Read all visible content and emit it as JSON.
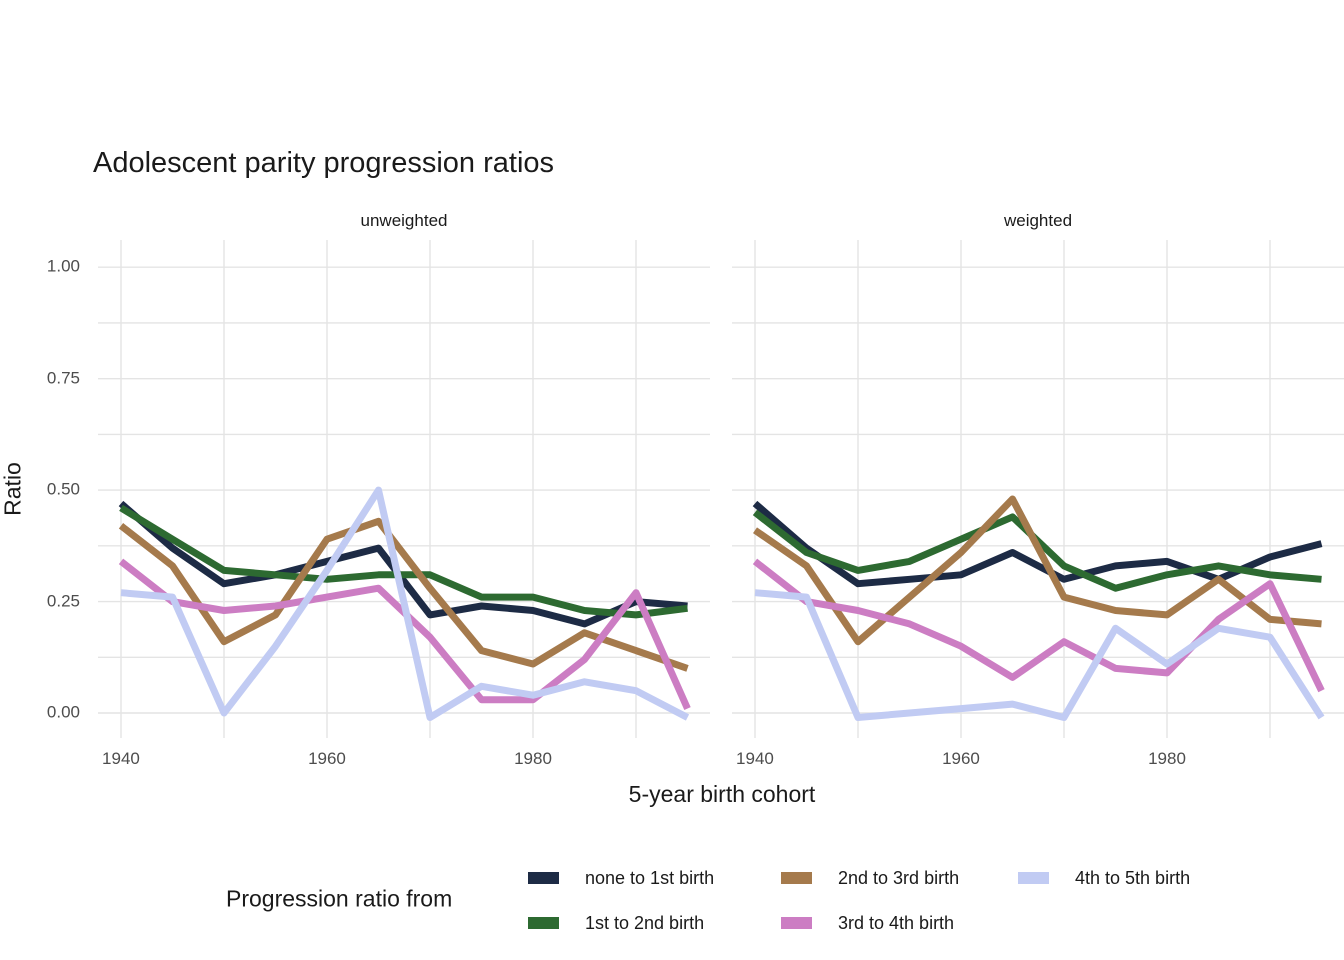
{
  "chart_data": {
    "type": "line",
    "title": "Adolescent parity progression ratios",
    "xlabel": "5-year birth cohort",
    "ylabel": "Ratio",
    "legend_title": "Progression ratio from",
    "legend_position": "bottom",
    "grid": true,
    "x": [
      1940,
      1945,
      1950,
      1955,
      1960,
      1965,
      1970,
      1975,
      1980,
      1985,
      1990,
      1995
    ],
    "x_ticks": [
      {
        "v": 1940,
        "label": "1940"
      },
      {
        "v": 1960,
        "label": "1960"
      },
      {
        "v": 1980,
        "label": "1980"
      }
    ],
    "x_gridlines": [
      1940,
      1950,
      1960,
      1970,
      1980,
      1990
    ],
    "y_ticks": [
      {
        "v": 0.0,
        "label": "0.00"
      },
      {
        "v": 0.25,
        "label": "0.25"
      },
      {
        "v": 0.5,
        "label": "0.50"
      },
      {
        "v": 0.75,
        "label": "0.75"
      },
      {
        "v": 1.0,
        "label": "1.00"
      }
    ],
    "y_gridlines": [
      0.0,
      0.125,
      0.25,
      0.375,
      0.5,
      0.625,
      0.75,
      0.875,
      1.0
    ],
    "xlim": [
      1937.77,
      1997.18
    ],
    "ylim": [
      -0.056,
      1.061
    ],
    "series": [
      {
        "id": "none_to_1st",
        "name": "none to 1st birth",
        "color": "#1d2b45"
      },
      {
        "id": "first_to_2nd",
        "name": "1st to 2nd birth",
        "color": "#2d6a31"
      },
      {
        "id": "second_to_3rd",
        "name": "2nd to 3rd birth",
        "color": "#a57a4c"
      },
      {
        "id": "third_to_4th",
        "name": "3rd to 4th birth",
        "color": "#cc7dc3"
      },
      {
        "id": "fourth_to_5th",
        "name": "4th to 5th birth",
        "color": "#c1cbf3"
      }
    ],
    "facets": [
      {
        "label": "unweighted",
        "values": {
          "none_to_1st": [
            0.47,
            0.37,
            0.29,
            0.31,
            0.34,
            0.37,
            0.22,
            0.24,
            0.23,
            0.2,
            0.25,
            0.24
          ],
          "first_to_2nd": [
            0.46,
            0.39,
            0.32,
            0.31,
            0.3,
            0.31,
            0.31,
            0.26,
            0.26,
            0.23,
            0.22,
            0.235
          ],
          "second_to_3rd": [
            0.42,
            0.33,
            0.16,
            0.22,
            0.39,
            0.43,
            0.28,
            0.14,
            0.11,
            0.18,
            0.14,
            0.1
          ],
          "third_to_4th": [
            0.34,
            0.25,
            0.23,
            0.24,
            0.26,
            0.28,
            0.17,
            0.03,
            0.03,
            0.12,
            0.27,
            0.01
          ],
          "fourth_to_5th": [
            0.27,
            0.26,
            0.0,
            0.15,
            0.32,
            0.5,
            -0.01,
            0.06,
            0.04,
            0.07,
            0.05,
            -0.01
          ]
        }
      },
      {
        "label": "weighted",
        "values": {
          "none_to_1st": [
            0.47,
            0.37,
            0.29,
            0.3,
            0.31,
            0.36,
            0.3,
            0.33,
            0.34,
            0.3,
            0.35,
            0.38
          ],
          "first_to_2nd": [
            0.45,
            0.36,
            0.32,
            0.34,
            0.39,
            0.44,
            0.33,
            0.28,
            0.31,
            0.33,
            0.31,
            0.3
          ],
          "second_to_3rd": [
            0.41,
            0.33,
            0.16,
            0.26,
            0.36,
            0.48,
            0.26,
            0.23,
            0.22,
            0.3,
            0.21,
            0.2
          ],
          "third_to_4th": [
            0.34,
            0.25,
            0.23,
            0.2,
            0.15,
            0.08,
            0.16,
            0.1,
            0.09,
            0.21,
            0.29,
            0.05
          ],
          "fourth_to_5th": [
            0.27,
            0.26,
            -0.01,
            0.0,
            0.01,
            0.02,
            -0.01,
            0.19,
            0.11,
            0.19,
            0.17,
            -0.01
          ]
        }
      }
    ]
  },
  "legend": {
    "title": "Progression ratio from"
  }
}
